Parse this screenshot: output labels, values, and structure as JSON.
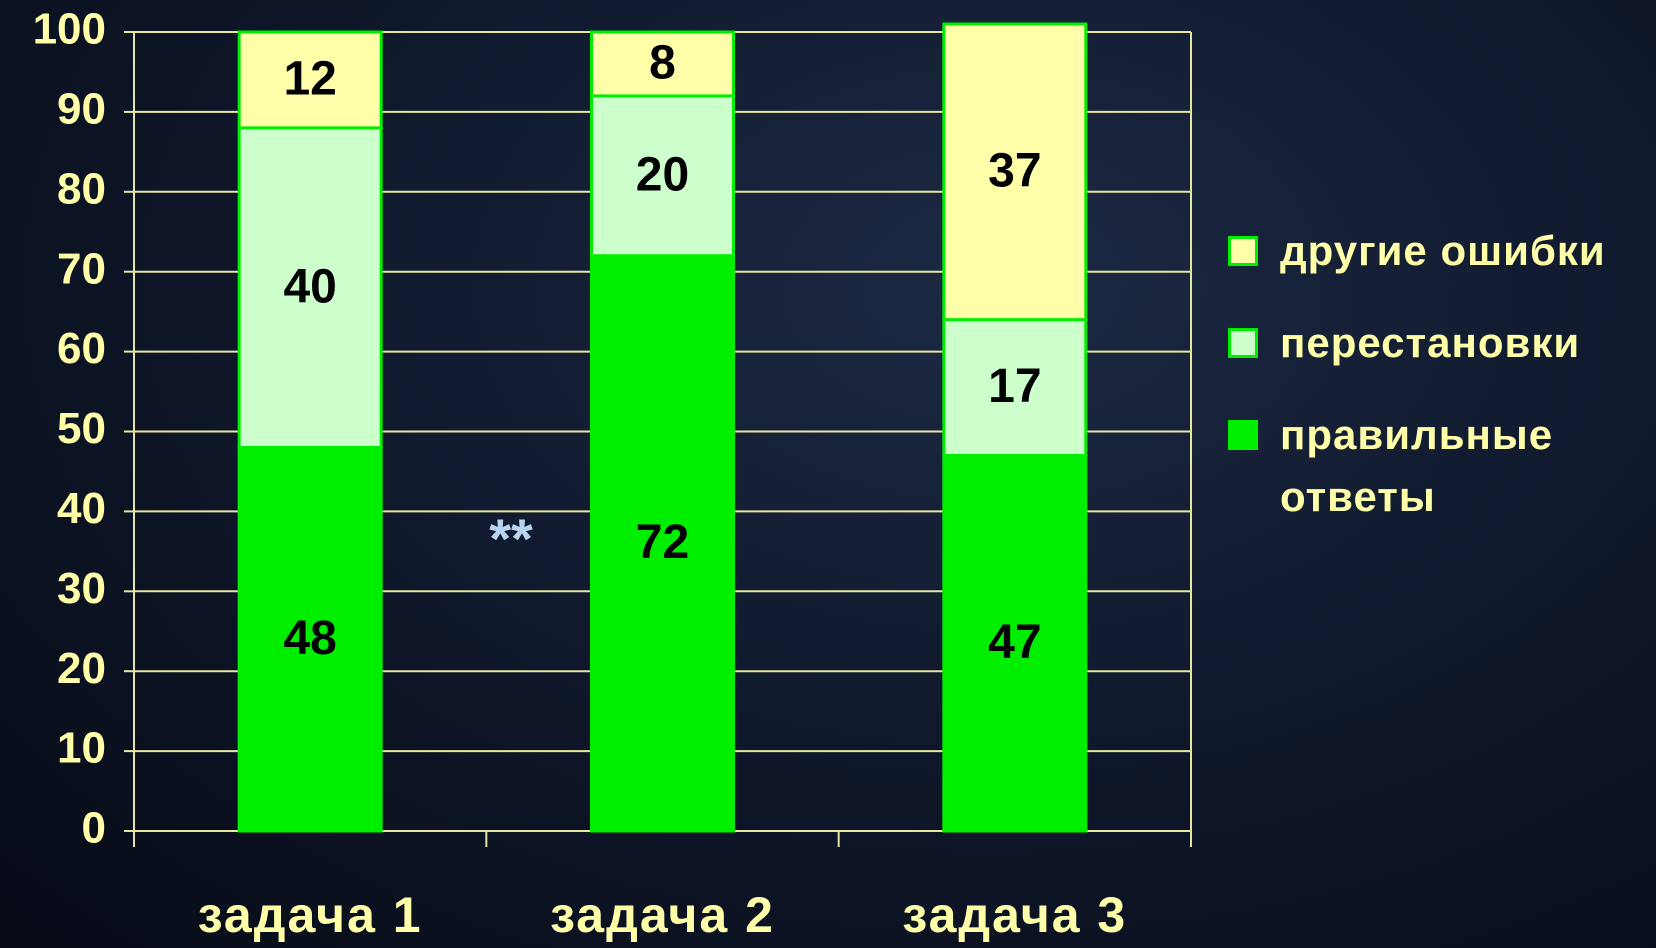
{
  "chart_data": {
    "type": "stacked-bar",
    "categories": [
      "задача 1",
      "задача 2",
      "задача 3"
    ],
    "series": [
      {
        "name": "правильные ответы",
        "color": "#00ee00",
        "values": [
          48,
          72,
          47
        ]
      },
      {
        "name": "перестановки",
        "color": "#ccffcc",
        "values": [
          40,
          20,
          17
        ]
      },
      {
        "name": "другие ошибки",
        "color": "#ffffaa",
        "values": [
          12,
          8,
          37
        ]
      }
    ],
    "ylim": [
      0,
      100
    ],
    "yticks": [
      0,
      10,
      20,
      30,
      40,
      50,
      60,
      70,
      80,
      90,
      100
    ],
    "grid": true,
    "annotation": "**",
    "legend": "right"
  }
}
